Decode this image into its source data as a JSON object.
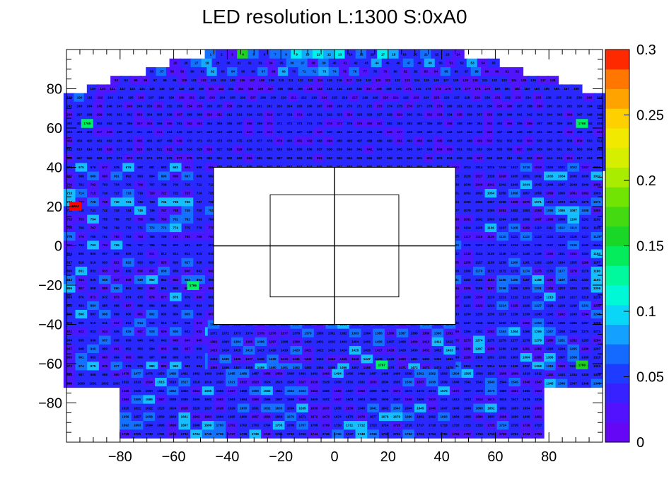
{
  "chart_data": {
    "type": "heatmap",
    "title": "LED resolution L:1300 S:0xA0",
    "xlabel": "",
    "ylabel": "",
    "xlim": [
      -100,
      100
    ],
    "ylim": [
      -100,
      100
    ],
    "x_ticks": [
      "−80",
      "−60",
      "−40",
      "−20",
      "0",
      "20",
      "40",
      "60",
      "80"
    ],
    "y_ticks": [
      "80",
      "60",
      "40",
      "20",
      "0",
      "−20",
      "−40",
      "−60",
      "−80"
    ],
    "colorbar": {
      "min": 0,
      "max": 0.3,
      "ticks": [
        "0",
        "0.05",
        "0.1",
        "0.15",
        "0.2",
        "0.25",
        "0.3"
      ]
    },
    "cell_size": 4.4,
    "rows": [
      {
        "y": 97.6,
        "x_min": -46.2,
        "x_max": 46.2,
        "values": "lmnBlmlljkjkjmlmjkmmlmmn"
      },
      {
        "y": 93.2,
        "x_min": -59.4,
        "x_max": 59.4,
        "values": "nmlkmmmmmnmllnlmnmmkmmlmkmnmknm"
      },
      {
        "y": 88.8,
        "x_min": -68.2,
        "x_max": 68.2,
        "values": "mlnnmmkmlmmlnkmllklnlnmnmnmnnlmmlnnnn"
      },
      {
        "y": 84.4,
        "x_min": -81.4,
        "x_max": 81.4,
        "values": "nmnnmmmnmnmmmnnnmmmmmnmmnmmnnmnmmmmmnnmmmnnmnn"
      },
      {
        "y": 80.0,
        "x_min": -90.2,
        "x_max": 90.2,
        "values": "mnnmmmmmmmmmnnmnnnnmmmnnmmmmnnmmnmmnnmnnnmmnmmmmmm"
      },
      {
        "y": 75.6,
        "x_min": -98.9,
        "x_max": 98.9,
        "values": "mlmnmmmnmmmnnmnmmmnmmmnmmnmmnmmnnmnmnmmmnmnmnmnmmmmnm"
      },
      {
        "y": 71.2,
        "x_min": -98.9,
        "x_max": 98.9,
        "values": "mmmnmmnmmnmmnnmmnmmmmmmmmmnmmmmnmmnmmnmmmmmnnmmnmmmmmm"
      },
      {
        "y": 66.8,
        "x_min": -98.9,
        "x_max": 98.9,
        "values": "nmmnmmmnmmmnmmnnmmmmnmmnmmmmnmmmmnmmnnmnmmnmmmmmmmnmmm"
      },
      {
        "y": 62.4,
        "x_min": -98.9,
        "x_max": 98.9,
        "values": "mmnmmmmnnmnmnnmmmmnmnmmmmmnnmnnnmmmmmmnmmmnmnmnmmmmnmm"
      },
      {
        "y": 58.0,
        "x_min": -98.9,
        "x_max": 98.9,
        "values": "mmmnnmmmmnmmmmmmmmnmnmmmmnmmmmmmnnmmmmmmmmnmmmmmmmnmmn"
      },
      {
        "y": 53.6,
        "x_min": -98.9,
        "x_max": 98.9,
        "values": "nmmmmmmnmmmnmmmmmmmmmnmnnmnmmmmmmnmnmnmmmnnmmmnmmmmnmm"
      },
      {
        "y": 49.2,
        "x_min": -98.9,
        "x_max": 98.9,
        "values": "mmmmnmmnmmnmmmnmmnmmmmmmmmmmmmnmmmmmmnnmmmmmmnmmmmmmmm"
      },
      {
        "y": 44.8,
        "x_min": -98.9,
        "x_max": 98.9,
        "values": "nmmmmmnmmmmnnmmmmmnmmmmmmnmmmmmmmmmmnmmmmnmmmmmnmmnmmm"
      },
      {
        "y": 40.4,
        "x_min": -98.9,
        "x_max": 98.9,
        "values": "mnmmmmmmmmmmmmmmmmmmmmmmmmmmmmmmmmmmmmmmmmmmmmmmmmmmmm"
      }
    ],
    "blocks": [
      {
        "x_min": -98.9,
        "x_max": -45.1,
        "y_min": -70,
        "y_max": 40,
        "seed": 3
      },
      {
        "x_min": 45.1,
        "x_max": 98.9,
        "y_min": -70,
        "y_max": 40,
        "seed": 7
      },
      {
        "x_min": -45.1,
        "x_max": 45.1,
        "y_min": -65,
        "y_max": -40,
        "seed": 11
      },
      {
        "x_min": -78,
        "x_max": 78,
        "y_min": -98.9,
        "y_max": -65,
        "seed": 13
      }
    ],
    "hotspots": [
      {
        "x": -96.7,
        "y": 20.2,
        "value": 0.3
      },
      {
        "x": -92.3,
        "y": 62.4,
        "value": 0.14
      },
      {
        "x": -52.8,
        "y": -20.2,
        "value": 0.14
      },
      {
        "x": 17.6,
        "y": -60.6,
        "value": 0.14
      },
      {
        "x": 92.3,
        "y": 62.4,
        "value": 0.14
      },
      {
        "x": 92.3,
        "y": -60.6,
        "value": 0.16
      }
    ],
    "empty_regions": [
      {
        "x_min": -45.1,
        "x_max": 45.1,
        "y_min": -40,
        "y_max": 40
      }
    ],
    "gridlines": [
      "x=0",
      "y=0"
    ]
  }
}
